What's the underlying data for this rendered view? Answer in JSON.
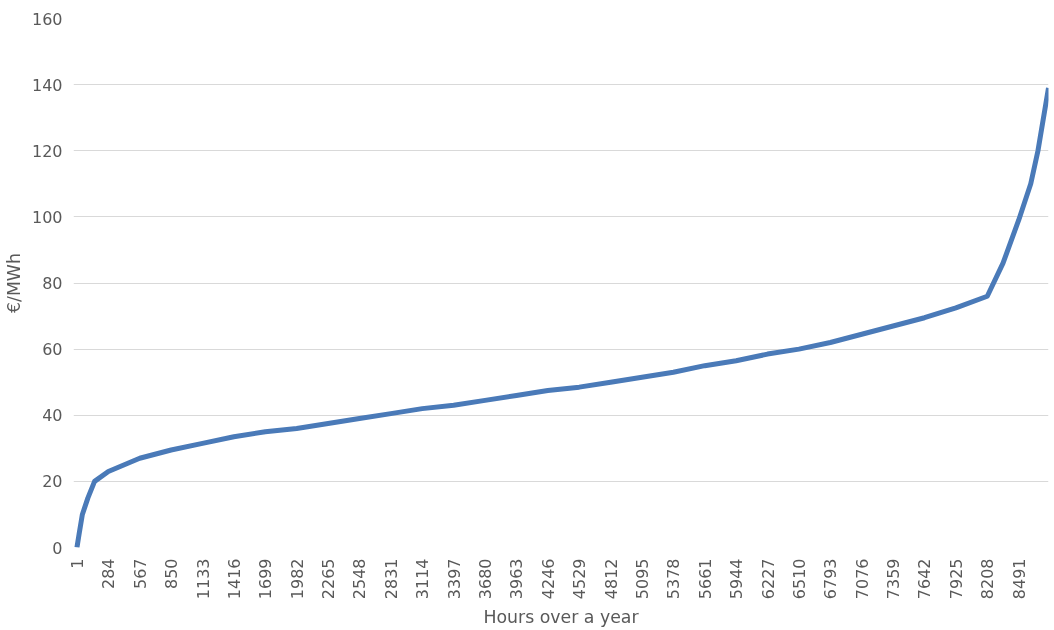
{
  "chart_data": {
    "type": "line",
    "xlabel": "Hours over a year",
    "ylabel": "€/MWh",
    "x": [
      1,
      20,
      50,
      100,
      160,
      284,
      567,
      850,
      1133,
      1416,
      1699,
      1982,
      2265,
      2548,
      2831,
      3114,
      3397,
      3680,
      3963,
      4246,
      4529,
      4812,
      5095,
      5378,
      5661,
      5944,
      6227,
      6510,
      6793,
      7076,
      7359,
      7642,
      7925,
      8208,
      8350,
      8491,
      8600,
      8665,
      8740,
      8760
    ],
    "series": [
      {
        "color": "#4a7ab8",
        "values": [
          0,
          4,
          10,
          15,
          20,
          23,
          27,
          29.5,
          31.5,
          33.5,
          35,
          36,
          37.5,
          39,
          40.5,
          42,
          43,
          44.5,
          46,
          47.5,
          48.5,
          50,
          51.5,
          53,
          55,
          56.5,
          58.5,
          60,
          62,
          64.5,
          67,
          69.5,
          72.5,
          76,
          86,
          99,
          110,
          120,
          135,
          139
        ]
      }
    ],
    "xlim": [
      -30,
      8760
    ],
    "xticks": [
      1,
      284,
      567,
      850,
      1133,
      1416,
      1699,
      1982,
      2265,
      2548,
      2831,
      3114,
      3397,
      3680,
      3963,
      4246,
      4529,
      4812,
      5095,
      5378,
      5661,
      5944,
      6227,
      6510,
      6793,
      7076,
      7359,
      7642,
      7925,
      8208,
      8491
    ],
    "ylim": [
      0,
      160
    ],
    "yticks": [
      0,
      20,
      40,
      60,
      80,
      100,
      120,
      140,
      160
    ],
    "grid": "y",
    "marker": "none",
    "line_style": "solid"
  }
}
